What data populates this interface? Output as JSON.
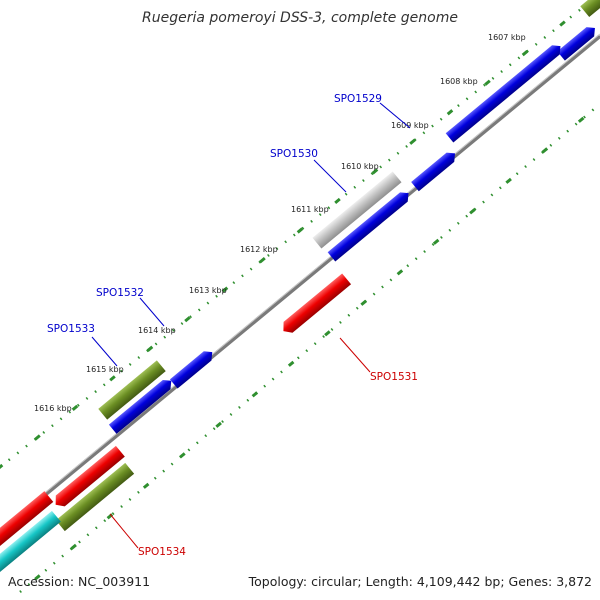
{
  "title": "Ruegeria pomeroyi DSS-3, complete genome",
  "footer": {
    "accession": "Accession: NC_003911",
    "summary": "Topology: circular; Length: 4,109,442 bp; Genes: 3,872"
  },
  "colors": {
    "backbone": "#8c8c8c",
    "tick": "#2f8f2f",
    "label_strand_plus": "#0000cc",
    "label_strand_minus": "#cc0000",
    "blue": "#0000dd",
    "red": "#ee0000",
    "olive": "#6b8e23",
    "gray": "#bcbcbc",
    "cyan": "#16c6c6"
  },
  "ticks": [
    "1607 kbp",
    "1608 kbp",
    "1609 kbp",
    "1610 kbp",
    "1611 kbp",
    "1612 kbp",
    "1613 kbp",
    "1614 kbp",
    "1615 kbp",
    "1616 kbp"
  ],
  "gene_labels": {
    "spo1529": "SPO1529",
    "spo1530": "SPO1530",
    "spo1531": "SPO1531",
    "spo1532": "SPO1532",
    "spo1533": "SPO1533",
    "spo1534": "SPO1534"
  }
}
